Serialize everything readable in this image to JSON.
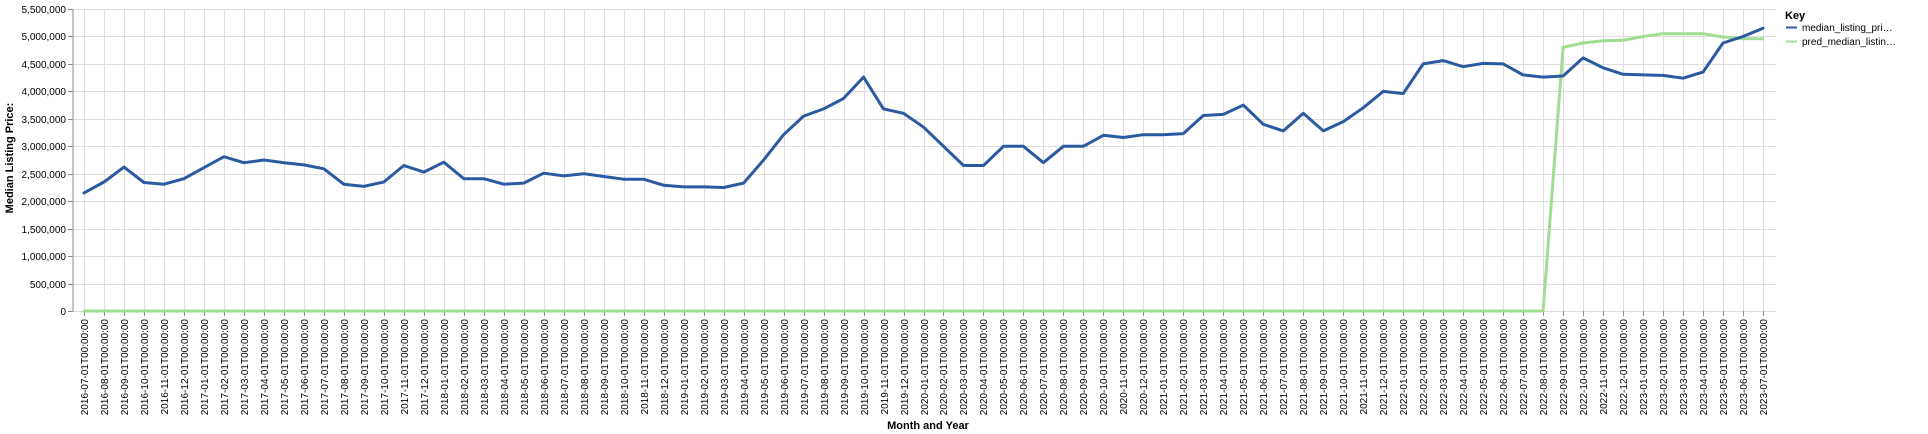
{
  "chart_data": {
    "type": "line",
    "xlabel": "Month and Year",
    "ylabel": "Median Listing Price:",
    "ylim": [
      0,
      5500000
    ],
    "y_ticks": [
      0,
      500000,
      1000000,
      1500000,
      2000000,
      2500000,
      3000000,
      3500000,
      4000000,
      4500000,
      5000000,
      5500000
    ],
    "y_tick_labels": [
      "0",
      "500,000",
      "1,000,000",
      "1,500,000",
      "2,000,000",
      "2,500,000",
      "3,000,000",
      "3,500,000",
      "4,000,000",
      "4,500,000",
      "5,000,000",
      "5,500,000"
    ],
    "grid": true,
    "legend": {
      "title": "Key",
      "position": "right"
    },
    "x": [
      "2016-07-01T00:00:00",
      "2016-08-01T00:00:00",
      "2016-09-01T00:00:00",
      "2016-10-01T00:00:00",
      "2016-11-01T00:00:00",
      "2016-12-01T00:00:00",
      "2017-01-01T00:00:00",
      "2017-02-01T00:00:00",
      "2017-03-01T00:00:00",
      "2017-04-01T00:00:00",
      "2017-05-01T00:00:00",
      "2017-06-01T00:00:00",
      "2017-07-01T00:00:00",
      "2017-08-01T00:00:00",
      "2017-09-01T00:00:00",
      "2017-10-01T00:00:00",
      "2017-11-01T00:00:00",
      "2017-12-01T00:00:00",
      "2018-01-01T00:00:00",
      "2018-02-01T00:00:00",
      "2018-03-01T00:00:00",
      "2018-04-01T00:00:00",
      "2018-05-01T00:00:00",
      "2018-06-01T00:00:00",
      "2018-07-01T00:00:00",
      "2018-08-01T00:00:00",
      "2018-09-01T00:00:00",
      "2018-10-01T00:00:00",
      "2018-11-01T00:00:00",
      "2018-12-01T00:00:00",
      "2019-01-01T00:00:00",
      "2019-02-01T00:00:00",
      "2019-03-01T00:00:00",
      "2019-04-01T00:00:00",
      "2019-05-01T00:00:00",
      "2019-06-01T00:00:00",
      "2019-07-01T00:00:00",
      "2019-08-01T00:00:00",
      "2019-09-01T00:00:00",
      "2019-10-01T00:00:00",
      "2019-11-01T00:00:00",
      "2019-12-01T00:00:00",
      "2020-01-01T00:00:00",
      "2020-02-01T00:00:00",
      "2020-03-01T00:00:00",
      "2020-04-01T00:00:00",
      "2020-05-01T00:00:00",
      "2020-06-01T00:00:00",
      "2020-07-01T00:00:00",
      "2020-08-01T00:00:00",
      "2020-09-01T00:00:00",
      "2020-10-01T00:00:00",
      "2020-11-01T00:00:00",
      "2020-12-01T00:00:00",
      "2021-01-01T00:00:00",
      "2021-02-01T00:00:00",
      "2021-03-01T00:00:00",
      "2021-04-01T00:00:00",
      "2021-05-01T00:00:00",
      "2021-06-01T00:00:00",
      "2021-07-01T00:00:00",
      "2021-08-01T00:00:00",
      "2021-09-01T00:00:00",
      "2021-10-01T00:00:00",
      "2021-11-01T00:00:00",
      "2021-12-01T00:00:00",
      "2022-01-01T00:00:00",
      "2022-02-01T00:00:00",
      "2022-03-01T00:00:00",
      "2022-04-01T00:00:00",
      "2022-05-01T00:00:00",
      "2022-06-01T00:00:00",
      "2022-07-01T00:00:00",
      "2022-08-01T00:00:00",
      "2022-09-01T00:00:00",
      "2022-10-01T00:00:00",
      "2022-11-01T00:00:00",
      "2022-12-01T00:00:00",
      "2023-01-01T00:00:00",
      "2023-02-01T00:00:00",
      "2023-03-01T00:00:00",
      "2023-04-01T00:00:00",
      "2023-05-01T00:00:00",
      "2023-06-01T00:00:00",
      "2023-07-01T00:00:00"
    ],
    "series": [
      {
        "name": "median_listing_pri…",
        "color": "#2c5aa0",
        "values": [
          2150000,
          2350000,
          2620000,
          2340000,
          2310000,
          2410000,
          2610000,
          2810000,
          2700000,
          2750000,
          2700000,
          2660000,
          2590000,
          2310000,
          2270000,
          2350000,
          2650000,
          2530000,
          2710000,
          2410000,
          2410000,
          2310000,
          2330000,
          2510000,
          2460000,
          2500000,
          2450000,
          2400000,
          2400000,
          2290000,
          2260000,
          2260000,
          2250000,
          2330000,
          2750000,
          3210000,
          3550000,
          3680000,
          3870000,
          4260000,
          3680000,
          3600000,
          3350000,
          3000000,
          2650000,
          2650000,
          3000000,
          3000000,
          2700000,
          3000000,
          3000000,
          3200000,
          3160000,
          3210000,
          3210000,
          3230000,
          3560000,
          3580000,
          3750000,
          3400000,
          3280000,
          3600000,
          3280000,
          3450000,
          3700000,
          4000000,
          3960000,
          4500000,
          4560000,
          4450000,
          4510000,
          4500000,
          4300000,
          4260000,
          4280000,
          4610000,
          4430000,
          4310000,
          4300000,
          4290000,
          4240000,
          4350000,
          4880000,
          5000000,
          5150000
        ]
      },
      {
        "name": "pred_median_listin…",
        "color": "#a2dd96",
        "values": [
          0,
          0,
          0,
          0,
          0,
          0,
          0,
          0,
          0,
          0,
          0,
          0,
          0,
          0,
          0,
          0,
          0,
          0,
          0,
          0,
          0,
          0,
          0,
          0,
          0,
          0,
          0,
          0,
          0,
          0,
          0,
          0,
          0,
          0,
          0,
          0,
          0,
          0,
          0,
          0,
          0,
          0,
          0,
          0,
          0,
          0,
          0,
          0,
          0,
          0,
          0,
          0,
          0,
          0,
          0,
          0,
          0,
          0,
          0,
          0,
          0,
          0,
          0,
          0,
          0,
          0,
          0,
          0,
          0,
          0,
          0,
          0,
          0,
          0,
          4800000,
          4880000,
          4920000,
          4930000,
          5000000,
          5050000,
          5050000,
          5050000,
          4990000,
          4960000,
          4960000
        ]
      }
    ]
  }
}
